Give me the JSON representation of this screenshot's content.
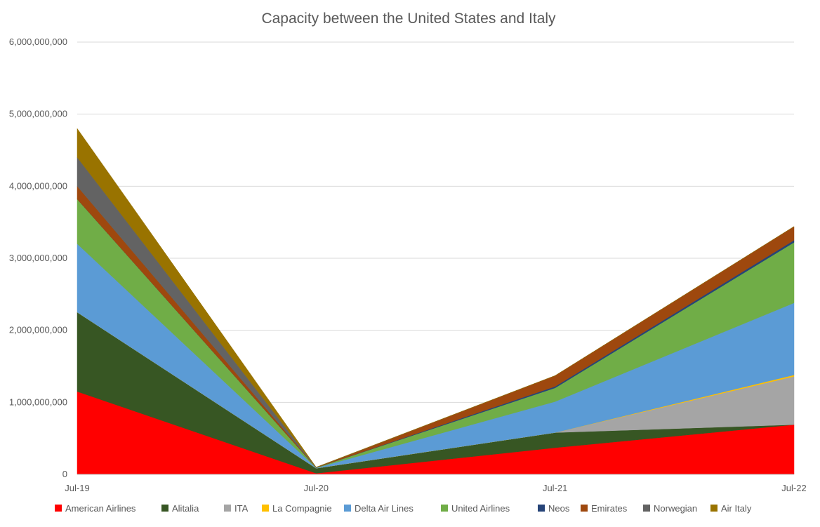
{
  "chart_data": {
    "type": "area",
    "stacked": true,
    "title": "Capacity between the United States and Italy",
    "xlabel": "",
    "ylabel": "",
    "categories": [
      "Jul-19",
      "Jul-20",
      "Jul-21",
      "Jul-22"
    ],
    "ylim": [
      0,
      6000000000
    ],
    "y_ticks": [
      "0",
      "1,000,000,000",
      "2,000,000,000",
      "3,000,000,000",
      "4,000,000,000",
      "5,000,000,000",
      "6,000,000,000"
    ],
    "grid": true,
    "legend_position": "bottom",
    "series": [
      {
        "name": "American Airlines",
        "color": "#ff0000",
        "values": [
          1150000000,
          15000000,
          370000000,
          690000000
        ]
      },
      {
        "name": "Alitalia",
        "color": "#375623",
        "values": [
          1100000000,
          70000000,
          210000000,
          0
        ]
      },
      {
        "name": "ITA",
        "color": "#a5a5a5",
        "values": [
          0,
          0,
          0,
          670000000
        ]
      },
      {
        "name": "La Compagnie",
        "color": "#ffc000",
        "values": [
          0,
          0,
          0,
          20000000
        ]
      },
      {
        "name": "Delta Air Lines",
        "color": "#5b9bd5",
        "values": [
          950000000,
          5000000,
          430000000,
          1000000000
        ]
      },
      {
        "name": "United Airlines",
        "color": "#70ad47",
        "values": [
          620000000,
          3000000,
          190000000,
          840000000
        ]
      },
      {
        "name": "Neos",
        "color": "#264478",
        "values": [
          0,
          0,
          20000000,
          30000000
        ]
      },
      {
        "name": "Emirates",
        "color": "#9e480e",
        "values": [
          180000000,
          2000000,
          150000000,
          190000000
        ]
      },
      {
        "name": "Norwegian",
        "color": "#636363",
        "values": [
          400000000,
          3000000,
          0,
          0
        ]
      },
      {
        "name": "Air Italy",
        "color": "#997300",
        "values": [
          400000000,
          2000000,
          0,
          0
        ]
      }
    ]
  }
}
